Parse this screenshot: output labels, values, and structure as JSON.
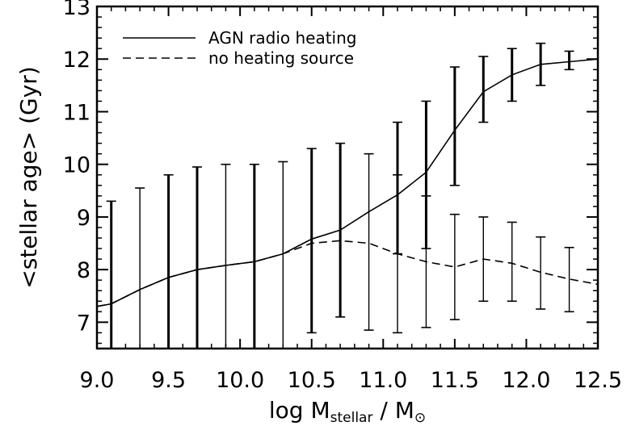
{
  "chart_data": {
    "type": "line",
    "title": "",
    "xlabel": "log M",
    "xlabel_sub": "stellar",
    "xlabel_tail": " / M",
    "xlabel_sub2": "⊙",
    "ylabel": "<stellar age> (Gyr)",
    "xlim": [
      9.0,
      12.5
    ],
    "ylim": [
      6.5,
      13.0
    ],
    "x_ticks": [
      9.0,
      9.5,
      10.0,
      10.5,
      11.0,
      11.5,
      12.0,
      12.5
    ],
    "x_tick_labels": [
      "9.0",
      "9.5",
      "10.0",
      "10.5",
      "11.0",
      "11.5",
      "12.0",
      "12.5"
    ],
    "y_ticks": [
      7,
      8,
      9,
      10,
      11,
      12,
      13
    ],
    "y_tick_labels": [
      "7",
      "8",
      "9",
      "10",
      "11",
      "12",
      "13"
    ],
    "grid": false,
    "legend_position": "top-left",
    "series": [
      {
        "name": "AGN radio heating",
        "style": "solid",
        "color": "#000000",
        "curve": [
          [
            9.0,
            7.3
          ],
          [
            9.1,
            7.35
          ],
          [
            9.3,
            7.62
          ],
          [
            9.5,
            7.85
          ],
          [
            9.7,
            8.0
          ],
          [
            9.9,
            8.08
          ],
          [
            10.1,
            8.15
          ],
          [
            10.3,
            8.3
          ],
          [
            10.5,
            8.58
          ],
          [
            10.7,
            8.75
          ],
          [
            10.9,
            9.1
          ],
          [
            11.1,
            9.42
          ],
          [
            11.3,
            9.85
          ],
          [
            11.5,
            10.65
          ],
          [
            11.7,
            11.38
          ],
          [
            11.9,
            11.7
          ],
          [
            12.1,
            11.9
          ],
          [
            12.3,
            11.95
          ],
          [
            12.5,
            12.0
          ]
        ],
        "errorbars": [
          {
            "x": 9.1,
            "lo": 6.5,
            "hi": 9.3
          },
          {
            "x": 9.5,
            "lo": 6.5,
            "hi": 9.8
          },
          {
            "x": 9.7,
            "lo": 6.5,
            "hi": 9.95
          },
          {
            "x": 10.1,
            "lo": 6.5,
            "hi": 10.0
          },
          {
            "x": 10.5,
            "lo": 6.8,
            "hi": 10.3
          },
          {
            "x": 10.7,
            "lo": 7.1,
            "hi": 10.4
          },
          {
            "x": 11.1,
            "lo": 8.3,
            "hi": 10.8
          },
          {
            "x": 11.3,
            "lo": 8.4,
            "hi": 11.2
          },
          {
            "x": 11.5,
            "lo": 9.6,
            "hi": 11.85
          },
          {
            "x": 11.7,
            "lo": 10.8,
            "hi": 12.05
          },
          {
            "x": 11.9,
            "lo": 11.2,
            "hi": 12.2
          },
          {
            "x": 12.1,
            "lo": 11.5,
            "hi": 12.3
          },
          {
            "x": 12.3,
            "lo": 11.8,
            "hi": 12.15
          }
        ]
      },
      {
        "name": "no heating source",
        "style": "dashed",
        "color": "#000000",
        "curve": [
          [
            9.0,
            7.3
          ],
          [
            9.1,
            7.35
          ],
          [
            9.3,
            7.62
          ],
          [
            9.5,
            7.85
          ],
          [
            9.7,
            8.0
          ],
          [
            9.9,
            8.08
          ],
          [
            10.1,
            8.15
          ],
          [
            10.3,
            8.3
          ],
          [
            10.5,
            8.5
          ],
          [
            10.7,
            8.55
          ],
          [
            10.9,
            8.5
          ],
          [
            11.1,
            8.3
          ],
          [
            11.3,
            8.15
          ],
          [
            11.5,
            8.05
          ],
          [
            11.7,
            8.2
          ],
          [
            11.9,
            8.12
          ],
          [
            12.1,
            7.95
          ],
          [
            12.3,
            7.82
          ],
          [
            12.5,
            7.72
          ]
        ],
        "errorbars": [
          {
            "x": 9.3,
            "lo": 6.5,
            "hi": 9.55
          },
          {
            "x": 9.9,
            "lo": 6.5,
            "hi": 10.0
          },
          {
            "x": 10.3,
            "lo": 6.5,
            "hi": 10.05
          },
          {
            "x": 10.9,
            "lo": 6.85,
            "hi": 10.2
          },
          {
            "x": 11.1,
            "lo": 6.8,
            "hi": 9.8
          },
          {
            "x": 11.3,
            "lo": 6.9,
            "hi": 9.4
          },
          {
            "x": 11.5,
            "lo": 7.05,
            "hi": 9.05
          },
          {
            "x": 11.7,
            "lo": 7.4,
            "hi": 9.0
          },
          {
            "x": 11.9,
            "lo": 7.4,
            "hi": 8.9
          },
          {
            "x": 12.1,
            "lo": 7.25,
            "hi": 8.62
          },
          {
            "x": 12.3,
            "lo": 7.2,
            "hi": 8.42
          }
        ]
      }
    ]
  }
}
